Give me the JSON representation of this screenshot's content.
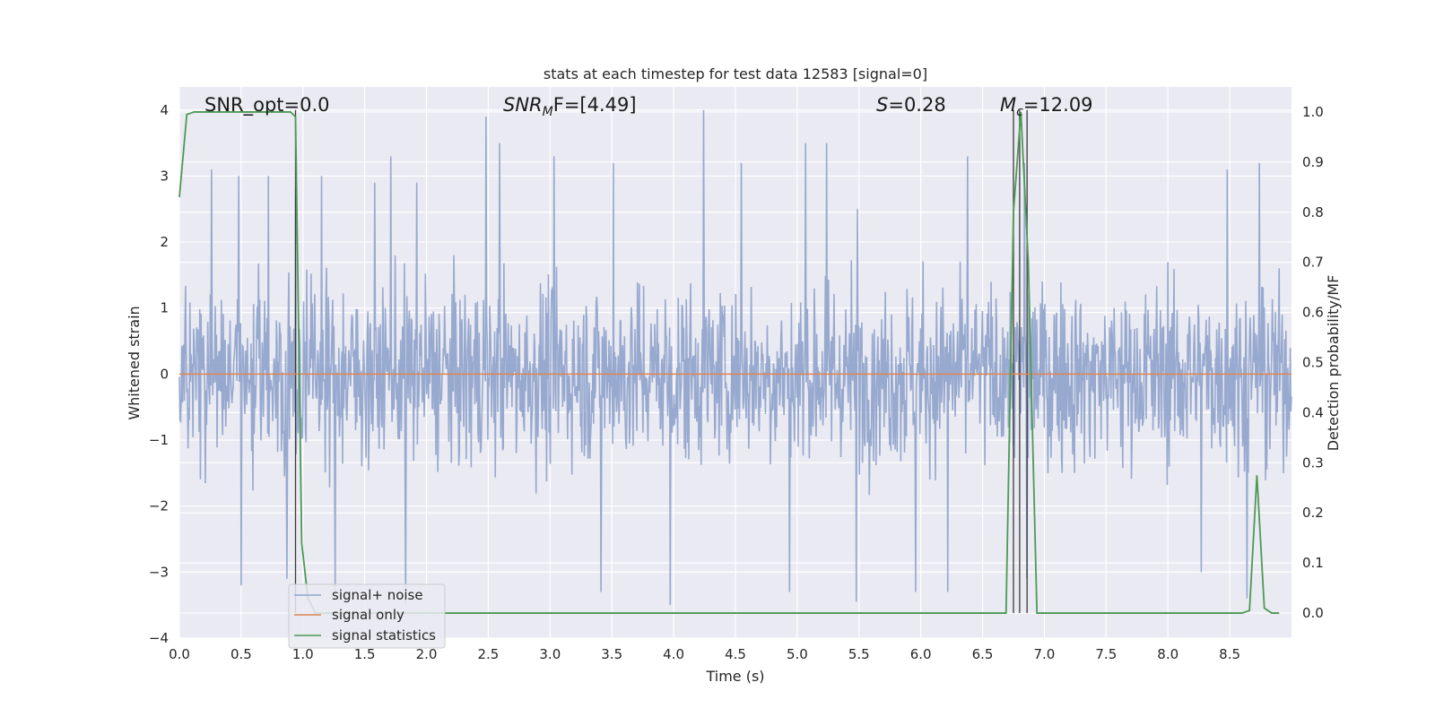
{
  "chart_data": {
    "type": "line",
    "title": "stats at each timestep for test data 12583 [signal=0]",
    "xlabel": "Time (s)",
    "ylabel": "Whitened strain",
    "y2label": "Detection probability/MF",
    "xlim": [
      0.0,
      9.0
    ],
    "ylim": [
      -4,
      4.35
    ],
    "y2lim": [
      -0.05,
      1.05
    ],
    "x_ticks": [
      "0.0",
      "0.5",
      "1.0",
      "1.5",
      "2.0",
      "2.5",
      "3.0",
      "3.5",
      "4.0",
      "4.5",
      "5.0",
      "5.5",
      "6.0",
      "6.5",
      "7.0",
      "7.5",
      "8.0",
      "8.5"
    ],
    "y_ticks": [
      "−4",
      "−3",
      "−2",
      "−1",
      "0",
      "1",
      "2",
      "3",
      "4"
    ],
    "y2_ticks": [
      "0.0",
      "0.1",
      "0.2",
      "0.3",
      "0.4",
      "0.5",
      "0.6",
      "0.7",
      "0.8",
      "0.9",
      "1.0"
    ],
    "grid": true,
    "legend_position": "lower-left",
    "annotations": {
      "snr_opt": "SNR_opt=0.0",
      "snr_mf_label": "SNR",
      "snr_mf_sub": "M",
      "snr_mf_rest": "F=[4.49]",
      "s_label": "S",
      "s_value": "=0.28",
      "mc_label": "M",
      "mc_sub": "c",
      "mc_value": "=12.09"
    },
    "vertical_markers": [
      0.94,
      6.75,
      6.8,
      6.86
    ],
    "series": [
      {
        "name": "signal+ noise",
        "axis": "left",
        "color": "#92a5cc",
        "description": "whitened strain noise, envelope approximately ±2 with spikes to ±3.5",
        "peaks_x": [
          0.26,
          0.48,
          0.72,
          0.94,
          1.15,
          1.58,
          1.71,
          1.92,
          2.48,
          2.59,
          3.03,
          3.51,
          4.24,
          4.55,
          5.07,
          5.24,
          5.49,
          6.38,
          6.84,
          8.48,
          8.74
        ],
        "peaks_y": [
          3.1,
          3.0,
          3.0,
          2.8,
          3.0,
          2.9,
          3.3,
          2.9,
          3.9,
          3.5,
          3.3,
          3.2,
          4.0,
          3.2,
          3.5,
          3.5,
          2.5,
          3.3,
          3.2,
          3.1,
          3.2
        ],
        "troughs_x": [
          0.5,
          0.87,
          1.26,
          1.83,
          3.41,
          3.97,
          4.94,
          5.48,
          5.96,
          6.22,
          6.86,
          8.27,
          8.64
        ],
        "troughs_y": [
          -3.2,
          -3.1,
          -3.3,
          -3.5,
          -3.3,
          -3.5,
          -3.3,
          -3.45,
          -3.3,
          -3.3,
          -3.1,
          -3.0,
          -3.4
        ]
      },
      {
        "name": "signal only",
        "axis": "left",
        "color": "#dd8452",
        "x": [
          0.0,
          9.0
        ],
        "y": [
          0.0,
          0.0
        ]
      },
      {
        "name": "signal statistics",
        "axis": "right",
        "color": "#4c9a55",
        "x": [
          0.0,
          0.06,
          0.12,
          0.3,
          0.9,
          0.94,
          0.99,
          1.04,
          1.1,
          6.65,
          6.69,
          6.75,
          6.81,
          6.87,
          6.94,
          8.6,
          8.66,
          8.72,
          8.78,
          8.84,
          8.9
        ],
        "y": [
          0.83,
          0.995,
          1.0,
          1.0,
          1.0,
          0.99,
          0.14,
          0.03,
          0.0,
          0.0,
          0.0,
          0.8,
          1.0,
          0.7,
          0.0,
          0.0,
          0.005,
          0.275,
          0.01,
          0.0,
          0.0
        ]
      }
    ]
  }
}
